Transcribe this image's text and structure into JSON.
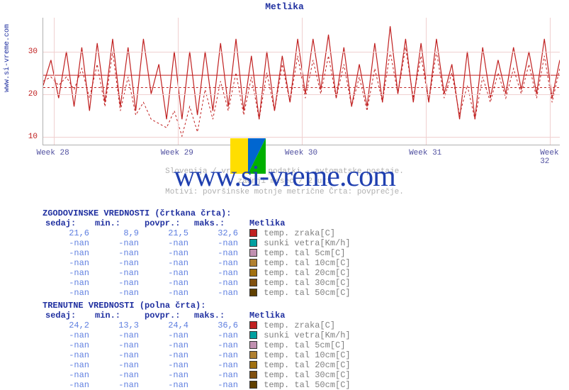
{
  "chart": {
    "title": "Metlika",
    "source_url": "www.si-vreme.com",
    "type": "line",
    "background_color": "#ffffff",
    "grid_color": "#f0d0d0",
    "axis_color": "#b0b0b0",
    "title_color": "#2030a0",
    "y_ticks": [
      10,
      20,
      30
    ],
    "y_tick_color": "#c02020",
    "ylim": [
      8,
      38
    ],
    "x_ticks": [
      "Week 28",
      "Week 29",
      "Week 30",
      "Week 31",
      "Week 32"
    ],
    "x_tick_positions": [
      0.02,
      0.26,
      0.5,
      0.74,
      0.98
    ],
    "x_tick_color": "#5050a0",
    "solid_avg_y": 24.4,
    "dashed_avg_y": 21.5,
    "series_solid": {
      "color": "#c02020",
      "stroke_width": 1.2,
      "dash": "none",
      "points": [
        22,
        28,
        19,
        30,
        17,
        31,
        16,
        32,
        18,
        33,
        17,
        31,
        16,
        33,
        20,
        27,
        14,
        30,
        14,
        30,
        15,
        30,
        16,
        32,
        17,
        33,
        16,
        29,
        14,
        30,
        16,
        29,
        18,
        33,
        20,
        33,
        21,
        34,
        19,
        31,
        17,
        27,
        17,
        32,
        18,
        36,
        20,
        33,
        18,
        32,
        18,
        33,
        20,
        27,
        14,
        30,
        14,
        31,
        19,
        28,
        20,
        31,
        21,
        30,
        20,
        33,
        19,
        28
      ]
    },
    "series_dashed": {
      "color": "#c02020",
      "stroke_width": 1.0,
      "dash": "3,3",
      "points": [
        23,
        24,
        22,
        24,
        21,
        26,
        19,
        27,
        17,
        30,
        16,
        24,
        15,
        18,
        14,
        13,
        12,
        16,
        10,
        17,
        11,
        21,
        14,
        23,
        16,
        25,
        15,
        24,
        14,
        25,
        16,
        27,
        18,
        29,
        19,
        28,
        20,
        29,
        19,
        27,
        17,
        24,
        16,
        26,
        18,
        30,
        20,
        31,
        19,
        29,
        18,
        30,
        19,
        25,
        15,
        22,
        14,
        24,
        18,
        25,
        19,
        26,
        20,
        27,
        19,
        29,
        18,
        26
      ]
    },
    "subtitle_lines": [
      "Slovenija / vremenski podatki - avtomatske postaje.",
      "zadnji mesec / 2 uri",
      "Motivi: površinske motnje metrične  Črta: povprečje."
    ]
  },
  "watermark": {
    "text": "www.si-vreme.com",
    "logo_colors": {
      "yellow": "#ffde00",
      "blue": "#0066d0",
      "green": "#00b000"
    }
  },
  "historical": {
    "header": "ZGODOVINSKE VREDNOSTI (črtkana črta):",
    "columns": [
      "sedaj:",
      "min.:",
      "povpr.:",
      "maks.:"
    ],
    "legend_header": "Metlika",
    "rows": [
      {
        "vals": [
          "21,6",
          "8,9",
          "21,5",
          "32,6"
        ],
        "swatch": "#c02020",
        "label": "temp. zraka[C]"
      },
      {
        "vals": [
          "-nan",
          "-nan",
          "-nan",
          "-nan"
        ],
        "swatch": "#00a0a0",
        "label": "sunki vetra[Km/h]"
      },
      {
        "vals": [
          "-nan",
          "-nan",
          "-nan",
          "-nan"
        ],
        "swatch": "#c090b0",
        "label": "temp. tal  5cm[C]"
      },
      {
        "vals": [
          "-nan",
          "-nan",
          "-nan",
          "-nan"
        ],
        "swatch": "#b08030",
        "label": "temp. tal 10cm[C]"
      },
      {
        "vals": [
          "-nan",
          "-nan",
          "-nan",
          "-nan"
        ],
        "swatch": "#a07010",
        "label": "temp. tal 20cm[C]"
      },
      {
        "vals": [
          "-nan",
          "-nan",
          "-nan",
          "-nan"
        ],
        "swatch": "#805010",
        "label": "temp. tal 30cm[C]"
      },
      {
        "vals": [
          "-nan",
          "-nan",
          "-nan",
          "-nan"
        ],
        "swatch": "#604000",
        "label": "temp. tal 50cm[C]"
      }
    ]
  },
  "current": {
    "header": "TRENUTNE VREDNOSTI (polna črta):",
    "columns": [
      "sedaj:",
      "min.:",
      "povpr.:",
      "maks.:"
    ],
    "legend_header": "Metlika",
    "rows": [
      {
        "vals": [
          "24,2",
          "13,3",
          "24,4",
          "36,6"
        ],
        "swatch": "#c02020",
        "label": "temp. zraka[C]"
      },
      {
        "vals": [
          "-nan",
          "-nan",
          "-nan",
          "-nan"
        ],
        "swatch": "#00a0a0",
        "label": "sunki vetra[Km/h]"
      },
      {
        "vals": [
          "-nan",
          "-nan",
          "-nan",
          "-nan"
        ],
        "swatch": "#c090b0",
        "label": "temp. tal  5cm[C]"
      },
      {
        "vals": [
          "-nan",
          "-nan",
          "-nan",
          "-nan"
        ],
        "swatch": "#b08030",
        "label": "temp. tal 10cm[C]"
      },
      {
        "vals": [
          "-nan",
          "-nan",
          "-nan",
          "-nan"
        ],
        "swatch": "#a07010",
        "label": "temp. tal 20cm[C]"
      },
      {
        "vals": [
          "-nan",
          "-nan",
          "-nan",
          "-nan"
        ],
        "swatch": "#805010",
        "label": "temp. tal 30cm[C]"
      },
      {
        "vals": [
          "-nan",
          "-nan",
          "-nan",
          "-nan"
        ],
        "swatch": "#604000",
        "label": "temp. tal 50cm[C]"
      }
    ]
  }
}
